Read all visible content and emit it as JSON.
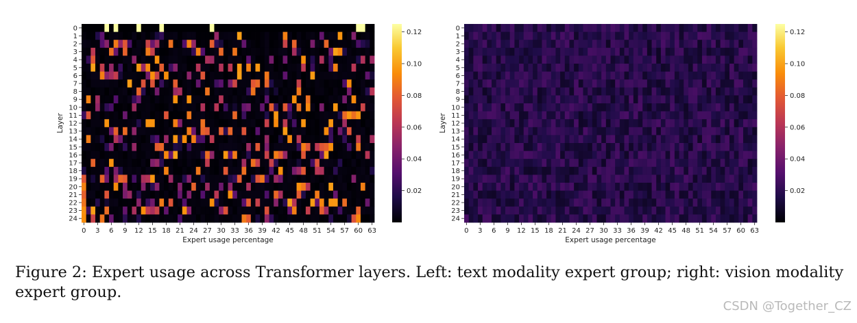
{
  "chart_data": [
    {
      "type": "heatmap",
      "panel": "left",
      "title": "",
      "xlabel": "Expert usage percentage",
      "ylabel": "Layer",
      "x_ticks": [
        "0",
        "3",
        "6",
        "9",
        "12",
        "15",
        "18",
        "21",
        "24",
        "27",
        "30",
        "33",
        "36",
        "39",
        "42",
        "45",
        "48",
        "51",
        "54",
        "57",
        "60",
        "63"
      ],
      "y_ticks": [
        "0",
        "1",
        "2",
        "3",
        "4",
        "5",
        "6",
        "7",
        "8",
        "9",
        "10",
        "11",
        "12",
        "13",
        "14",
        "15",
        "16",
        "17",
        "18",
        "19",
        "20",
        "21",
        "22",
        "23",
        "24"
      ],
      "colorbar_ticks": [
        "0.12",
        "0.10",
        "0.08",
        "0.06",
        "0.04",
        "0.02"
      ],
      "colorbar_range": [
        0.0,
        0.125
      ],
      "colormap": "inferno",
      "grid": false,
      "layers": 25,
      "experts": 64,
      "description_of_values": "Sparse: most cells near 0 (black); scattered cells at ~0.02-0.09 (purple/red/orange); layer 0 has a few cells near 0.125 (pale yellow) at experts ~5, 7, 12, 17, 28, 60, 61."
    },
    {
      "type": "heatmap",
      "panel": "right",
      "title": "",
      "xlabel": "Expert usage percentage",
      "ylabel": "Layer",
      "x_ticks": [
        "0",
        "3",
        "6",
        "9",
        "12",
        "15",
        "18",
        "21",
        "24",
        "27",
        "30",
        "33",
        "36",
        "39",
        "42",
        "45",
        "48",
        "51",
        "54",
        "57",
        "60",
        "63"
      ],
      "y_ticks": [
        "0",
        "1",
        "2",
        "3",
        "4",
        "5",
        "6",
        "7",
        "8",
        "9",
        "10",
        "11",
        "12",
        "13",
        "14",
        "15",
        "16",
        "17",
        "18",
        "19",
        "20",
        "21",
        "22",
        "23",
        "24"
      ],
      "colorbar_ticks": [
        "0.12",
        "0.10",
        "0.08",
        "0.06",
        "0.04",
        "0.02"
      ],
      "colorbar_range": [
        0.0,
        0.125
      ],
      "colormap": "inferno",
      "grid": false,
      "layers": 25,
      "experts": 64,
      "description_of_values": "Dense and uniform: nearly all cells around 0.01-0.025 (dark purple)."
    }
  ],
  "caption": "Figure 2: Expert usage across Transformer layers. Left: text modality expert group; right: vision modality expert group.",
  "watermark": "CSDN @Together_CZ"
}
